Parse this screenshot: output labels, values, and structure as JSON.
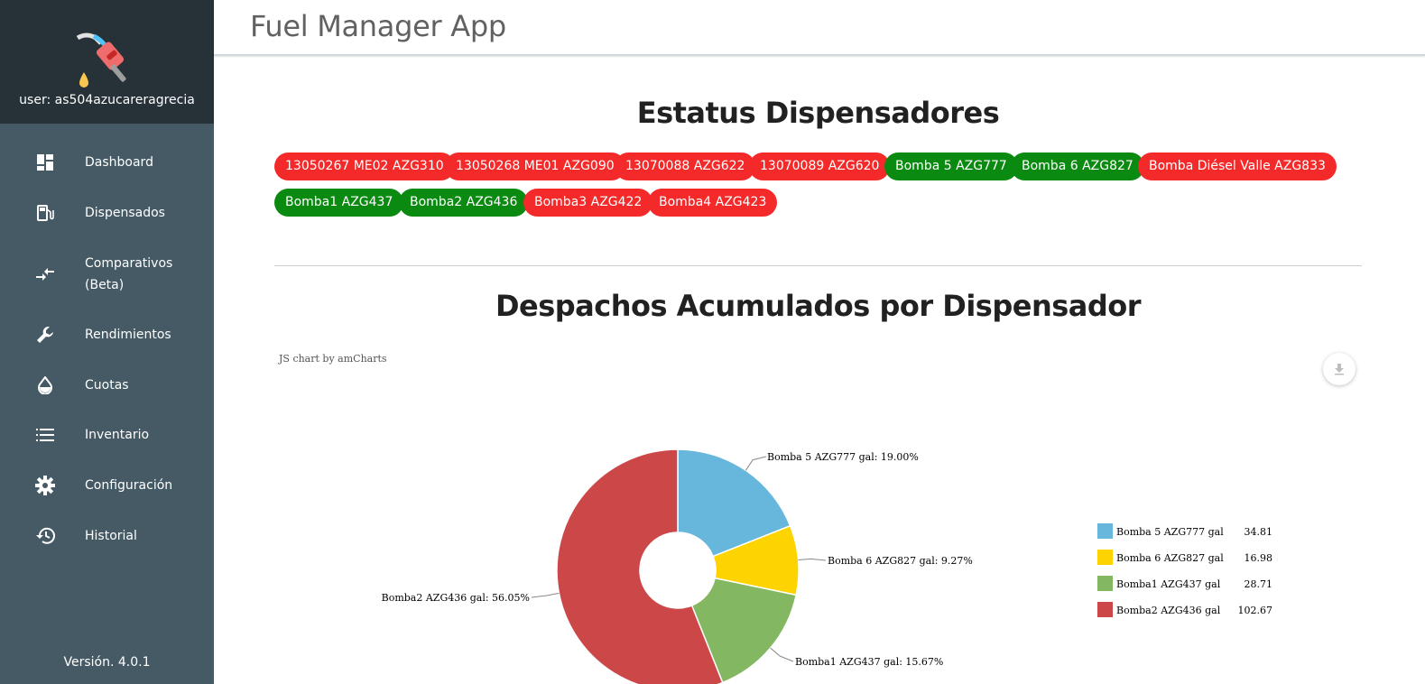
{
  "sidebar": {
    "user_label": "user: as504azucareragrecia",
    "version": "Versión. 4.0.1",
    "items": [
      {
        "label": "Dashboard",
        "icon": "dashboard-icon"
      },
      {
        "label": "Dispensados",
        "icon": "fuel-pump-icon"
      },
      {
        "label": "Comparativos",
        "label2": "(Beta)",
        "icon": "compare-arrows-icon"
      },
      {
        "label": "Rendimientos",
        "icon": "wrench-icon"
      },
      {
        "label": "Cuotas",
        "icon": "drop-icon"
      },
      {
        "label": "Inventario",
        "icon": "list-icon"
      },
      {
        "label": "Configuración",
        "icon": "gear-icon"
      },
      {
        "label": "Historial",
        "icon": "history-icon"
      }
    ]
  },
  "header": {
    "title": "Fuel Manager App"
  },
  "status": {
    "title": "Estatus Dispensadores",
    "chips": [
      {
        "label": "13050267 ME02 AZG310",
        "state": "red"
      },
      {
        "label": "13050268 ME01 AZG090",
        "state": "red"
      },
      {
        "label": "13070088 AZG622",
        "state": "red"
      },
      {
        "label": "13070089 AZG620",
        "state": "red"
      },
      {
        "label": "Bomba 5 AZG777",
        "state": "green"
      },
      {
        "label": "Bomba 6 AZG827",
        "state": "green"
      },
      {
        "label": "Bomba Diésel Valle AZG833",
        "state": "red"
      },
      {
        "label": "Bomba1 AZG437",
        "state": "green"
      },
      {
        "label": "Bomba2 AZG436",
        "state": "green"
      },
      {
        "label": "Bomba3 AZG422",
        "state": "red"
      },
      {
        "label": "Bomba4 AZG423",
        "state": "red"
      }
    ]
  },
  "chart_section": {
    "title": "Despachos Acumulados por Dispensador",
    "credit": "JS chart by amCharts"
  },
  "colors": {
    "red": "#f42a2a",
    "green": "#0a8a10",
    "sidebar": "#455a64",
    "sidebar_head": "#263238"
  },
  "chart_data": {
    "type": "pie",
    "donut": true,
    "legend_position": "right",
    "slices": [
      {
        "name": "Bomba 5 AZG777 gal",
        "value": 34.81,
        "percent_label": "Bomba 5 AZG777 gal: 19.00%",
        "color": "#67b7dc"
      },
      {
        "name": "Bomba 6 AZG827 gal",
        "value": 16.98,
        "percent_label": "Bomba 6 AZG827 gal: 9.27%",
        "color": "#fdd400"
      },
      {
        "name": "Bomba1 AZG437 gal",
        "value": 28.71,
        "percent_label": "Bomba1 AZG437 gal: 15.67%",
        "color": "#84b761"
      },
      {
        "name": "Bomba2 AZG436 gal",
        "value": 102.67,
        "percent_label": "Bomba2 AZG436 gal: 56.05%",
        "color": "#cc4748"
      }
    ],
    "legend_values": [
      "34.81",
      "16.98",
      "28.71",
      "102.67"
    ]
  }
}
